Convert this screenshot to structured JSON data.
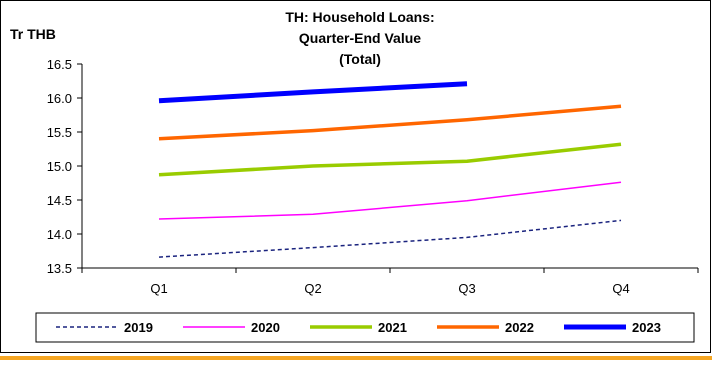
{
  "chart_data": {
    "type": "line",
    "title_lines": [
      "TH: Household  Loans:",
      "Quarter-End Value",
      "(Total)"
    ],
    "ylabel": "Tr THB",
    "categories": [
      "Q1",
      "Q2",
      "Q3",
      "Q4"
    ],
    "ylim": [
      13.5,
      16.5
    ],
    "yticks": [
      "16.5",
      "16.0",
      "15.5",
      "15.0",
      "14.5",
      "14.0",
      "13.5"
    ],
    "ytick_values": [
      16.5,
      16.0,
      15.5,
      15.0,
      14.5,
      14.0,
      13.5
    ],
    "grid": false,
    "legend_position": "bottom",
    "series": [
      {
        "name": "2019",
        "values": [
          13.66,
          13.8,
          13.95,
          14.2
        ],
        "color": "#1a237e",
        "dash": "dashed",
        "weight": "thin"
      },
      {
        "name": "2020",
        "values": [
          14.22,
          14.29,
          14.49,
          14.76
        ],
        "color": "#ff00ff",
        "dash": "solid",
        "weight": "thin"
      },
      {
        "name": "2021",
        "values": [
          14.87,
          15.0,
          15.07,
          15.32
        ],
        "color": "#99cc00",
        "dash": "solid",
        "weight": "medium"
      },
      {
        "name": "2022",
        "values": [
          15.4,
          15.52,
          15.68,
          15.88
        ],
        "color": "#ff6600",
        "dash": "solid",
        "weight": "medium"
      },
      {
        "name": "2023",
        "values": [
          15.96,
          16.09,
          16.21,
          null
        ],
        "color": "#0000ff",
        "dash": "solid",
        "weight": "thick"
      }
    ]
  },
  "colors": {
    "footer_rule": "#f5a623",
    "frame": "#000000"
  }
}
